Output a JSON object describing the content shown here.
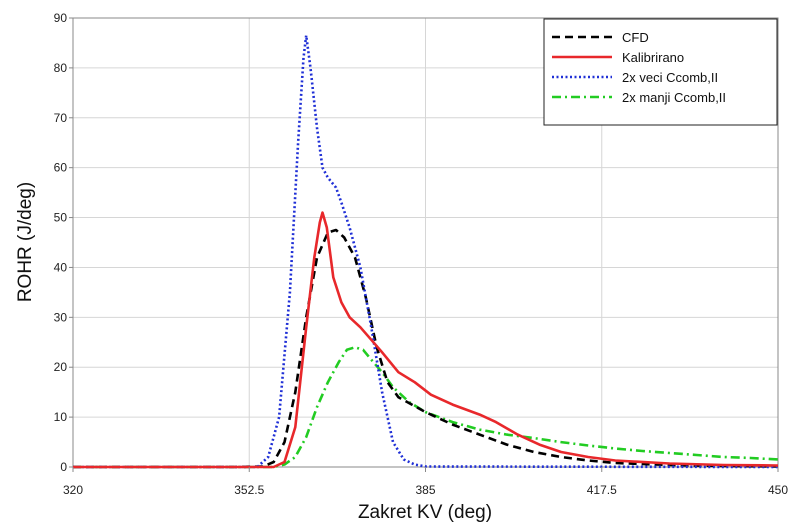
{
  "chart_data": {
    "type": "line",
    "title": "",
    "xlabel": "Zakret KV (deg)",
    "ylabel": "ROHR (J/deg)",
    "xlim": [
      320,
      450
    ],
    "ylim": [
      0,
      90
    ],
    "x_ticks": [
      320,
      352.5,
      385,
      417.5,
      450
    ],
    "x_tick_labels": [
      "320",
      "352.5",
      "385",
      "417.5",
      "450"
    ],
    "y_ticks": [
      0,
      10,
      20,
      30,
      40,
      50,
      60,
      70,
      80,
      90
    ],
    "y_tick_labels": [
      "0",
      "10",
      "20",
      "30",
      "40",
      "50",
      "60",
      "70",
      "80",
      "90"
    ],
    "grid": true,
    "legend_position": "top-right",
    "series": [
      {
        "name": "CFD",
        "color": "#000000",
        "dash": "dashed",
        "points": [
          [
            320,
            0
          ],
          [
            350,
            0
          ],
          [
            355,
            0.1
          ],
          [
            357,
            1
          ],
          [
            359,
            5
          ],
          [
            361,
            15
          ],
          [
            363,
            30
          ],
          [
            365,
            42
          ],
          [
            367,
            47
          ],
          [
            368.5,
            47.5
          ],
          [
            370,
            46
          ],
          [
            372,
            42
          ],
          [
            374,
            34
          ],
          [
            376,
            24
          ],
          [
            378,
            17
          ],
          [
            380,
            14
          ],
          [
            385,
            11
          ],
          [
            390,
            8.5
          ],
          [
            395,
            6.5
          ],
          [
            400,
            4.5
          ],
          [
            405,
            3
          ],
          [
            410,
            2
          ],
          [
            415,
            1.3
          ],
          [
            420,
            0.8
          ],
          [
            430,
            0.4
          ],
          [
            440,
            0.2
          ],
          [
            450,
            0.1
          ]
        ]
      },
      {
        "name": "Kalibrirano",
        "color": "#e8282b",
        "dash": "solid",
        "points": [
          [
            320,
            0
          ],
          [
            357,
            0
          ],
          [
            359,
            1
          ],
          [
            361,
            8
          ],
          [
            363,
            28
          ],
          [
            364.5,
            42
          ],
          [
            365.5,
            49
          ],
          [
            366,
            51
          ],
          [
            366.8,
            48
          ],
          [
            368,
            38
          ],
          [
            369.5,
            33
          ],
          [
            371,
            30
          ],
          [
            373,
            28
          ],
          [
            375,
            25.5
          ],
          [
            377,
            23
          ],
          [
            380,
            19
          ],
          [
            383,
            17
          ],
          [
            386,
            14.5
          ],
          [
            390,
            12.5
          ],
          [
            395,
            10.5
          ],
          [
            398,
            9
          ],
          [
            402,
            6.5
          ],
          [
            406,
            4.5
          ],
          [
            410,
            3
          ],
          [
            415,
            2
          ],
          [
            420,
            1.3
          ],
          [
            430,
            0.7
          ],
          [
            440,
            0.4
          ],
          [
            450,
            0.3
          ]
        ]
      },
      {
        "name": "2x veci Ccomb,II",
        "color": "#1f2fd6",
        "dash": "dotted",
        "points": [
          [
            320,
            0
          ],
          [
            354,
            0
          ],
          [
            356,
            2
          ],
          [
            358,
            10
          ],
          [
            360,
            35
          ],
          [
            361.5,
            65
          ],
          [
            362.5,
            82
          ],
          [
            363,
            86.5
          ],
          [
            363.8,
            80
          ],
          [
            365,
            68
          ],
          [
            366,
            60
          ],
          [
            367,
            58
          ],
          [
            368.5,
            56
          ],
          [
            369.5,
            53
          ],
          [
            371,
            48
          ],
          [
            373,
            40
          ],
          [
            375,
            28
          ],
          [
            377,
            15
          ],
          [
            379,
            5
          ],
          [
            381,
            1.5
          ],
          [
            383,
            0.5
          ],
          [
            385,
            0.1
          ],
          [
            450,
            0
          ]
        ]
      },
      {
        "name": "2x manji Ccomb,II",
        "color": "#22cc22",
        "dash": "dashdot",
        "points": [
          [
            320,
            0
          ],
          [
            357,
            0
          ],
          [
            359,
            0.5
          ],
          [
            361,
            2
          ],
          [
            363,
            6
          ],
          [
            365,
            12
          ],
          [
            367,
            17
          ],
          [
            369,
            21
          ],
          [
            370.5,
            23.5
          ],
          [
            372,
            24
          ],
          [
            373.5,
            23.5
          ],
          [
            375,
            21.5
          ],
          [
            377,
            19
          ],
          [
            379,
            16
          ],
          [
            382,
            13
          ],
          [
            385,
            11
          ],
          [
            390,
            9
          ],
          [
            395,
            7.5
          ],
          [
            400,
            6.5
          ],
          [
            405,
            5.8
          ],
          [
            410,
            5
          ],
          [
            415,
            4.3
          ],
          [
            420,
            3.7
          ],
          [
            425,
            3.2
          ],
          [
            430,
            2.8
          ],
          [
            435,
            2.4
          ],
          [
            440,
            2
          ],
          [
            445,
            1.8
          ],
          [
            450,
            1.5
          ]
        ]
      }
    ]
  }
}
